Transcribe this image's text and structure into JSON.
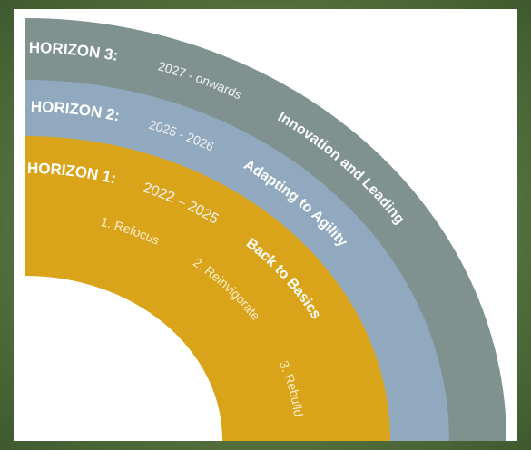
{
  "horizons": [
    {
      "label": "HORIZON 3:",
      "period": "2027 - onwards",
      "theme": "Innovation and Leading"
    },
    {
      "label": "HORIZON 2:",
      "period": "2025 - 2026",
      "theme": "Adapting to Agility"
    },
    {
      "label": "HORIZON 1:",
      "period": "2022 – 2025",
      "theme": "Back to Basics"
    }
  ],
  "steps": [
    "1. Refocus",
    "2. Reinvigorate",
    "3. Rebuild"
  ]
}
